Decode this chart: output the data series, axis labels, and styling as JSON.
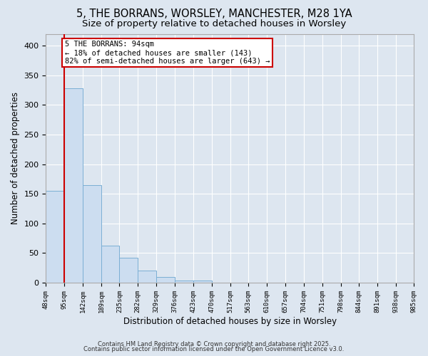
{
  "title1": "5, THE BORRANS, WORSLEY, MANCHESTER, M28 1YA",
  "title2": "Size of property relative to detached houses in Worsley",
  "xlabel": "Distribution of detached houses by size in Worsley",
  "ylabel": "Number of detached properties",
  "bar_edges": [
    48,
    95,
    142,
    189,
    235,
    282,
    329,
    376,
    423,
    470,
    517,
    563,
    610,
    657,
    704,
    751,
    798,
    844,
    891,
    938,
    985
  ],
  "bar_heights": [
    155,
    328,
    165,
    63,
    42,
    20,
    9,
    4,
    4,
    0,
    0,
    0,
    0,
    0,
    0,
    0,
    0,
    0,
    0,
    0
  ],
  "bar_color": "#ccddf0",
  "bar_edgecolor": "#7bafd4",
  "vline_x": 94,
  "vline_color": "#cc0000",
  "annotation_text": "5 THE BORRANS: 94sqm\n← 18% of detached houses are smaller (143)\n82% of semi-detached houses are larger (643) →",
  "annotation_box_facecolor": "#ffffff",
  "annotation_box_edgecolor": "#cc0000",
  "annotation_fontsize": 7.5,
  "bg_color": "#dde6f0",
  "plot_bg_color": "#dde6f0",
  "grid_color": "#ffffff",
  "title1_fontsize": 10.5,
  "title2_fontsize": 9.5,
  "ylim": [
    0,
    420
  ],
  "yticks": [
    0,
    50,
    100,
    150,
    200,
    250,
    300,
    350,
    400
  ],
  "footnote1": "Contains HM Land Registry data © Crown copyright and database right 2025.",
  "footnote2": "Contains public sector information licensed under the Open Government Licence v3.0."
}
